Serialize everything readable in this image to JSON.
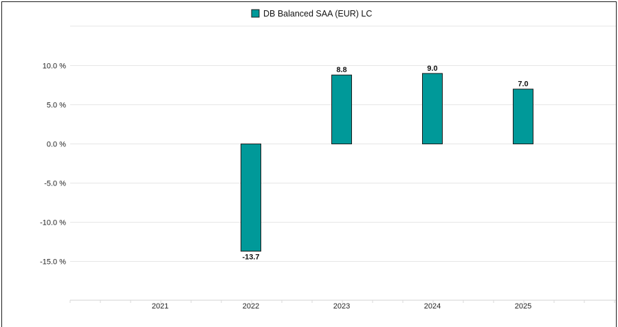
{
  "chart_data": {
    "type": "bar",
    "categories": [
      "2021",
      "2022",
      "2023",
      "2024",
      "2025"
    ],
    "series": [
      {
        "name": "DB Balanced SAA (EUR) LC",
        "values": [
          null,
          -13.7,
          8.8,
          9.0,
          7.0
        ],
        "data_labels": [
          "",
          "-13.7",
          "8.8",
          "9.0",
          "7.0"
        ]
      }
    ],
    "y_ticks": [
      10.0,
      5.0,
      0.0,
      -5.0,
      -10.0,
      -15.0
    ],
    "y_tick_labels": [
      "10.0 %",
      "5.0 %",
      "0.0 %",
      "-5.0 %",
      "-10.0 %",
      "-15.0 %"
    ],
    "ylim": [
      -20,
      15
    ],
    "grid": true,
    "legend_position": "top-center",
    "colors": {
      "bar_fill": "#009999",
      "bar_stroke": "#1a1a1a",
      "grid": "#e6e6e6"
    }
  }
}
